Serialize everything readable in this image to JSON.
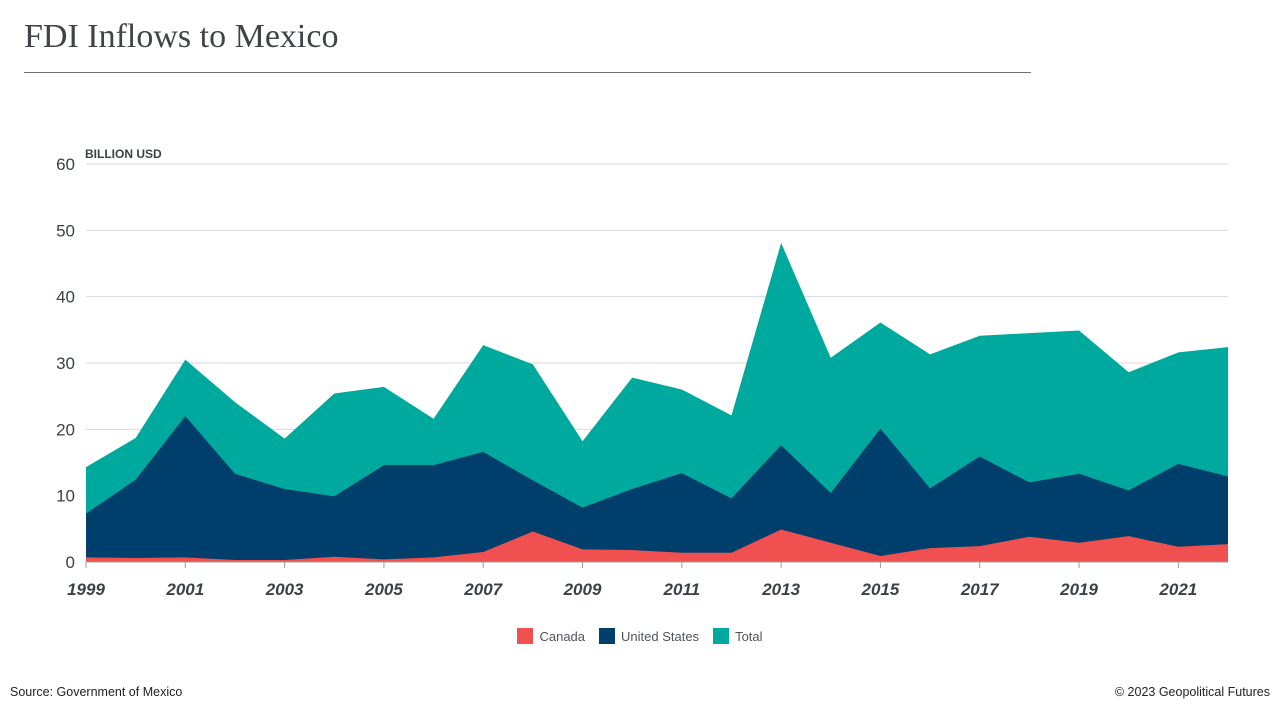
{
  "header": {
    "title": "FDI Inflows to Mexico"
  },
  "footer": {
    "source": "Source: Government of Mexico",
    "credit": "© 2023 Geopolitical Futures"
  },
  "chart_data": {
    "type": "area",
    "title": "FDI Inflows to Mexico",
    "unit_label": "BILLION USD",
    "x": [
      1999,
      2000,
      2001,
      2002,
      2003,
      2004,
      2005,
      2006,
      2007,
      2008,
      2009,
      2010,
      2011,
      2012,
      2013,
      2014,
      2015,
      2016,
      2017,
      2018,
      2019,
      2020,
      2021,
      2022
    ],
    "x_tick_labels": [
      "1999",
      "2001",
      "2003",
      "2005",
      "2007",
      "2009",
      "2011",
      "2013",
      "2015",
      "2017",
      "2019",
      "2021"
    ],
    "ylim": [
      0,
      60
    ],
    "y_ticks": [
      0,
      10,
      20,
      30,
      40,
      50,
      60
    ],
    "grid": true,
    "legend_position": "bottom",
    "series": [
      {
        "name": "Canada",
        "color": "#f05050",
        "values": [
          0.7,
          0.6,
          0.7,
          0.3,
          0.3,
          0.8,
          0.4,
          0.7,
          1.5,
          4.6,
          1.9,
          1.8,
          1.4,
          1.4,
          4.9,
          2.9,
          0.9,
          2.1,
          2.4,
          3.8,
          2.9,
          3.9,
          2.3,
          2.7
        ]
      },
      {
        "name": "United States",
        "color": "#003f6b",
        "values": [
          7.3,
          12.4,
          22.0,
          13.3,
          11.0,
          9.9,
          14.6,
          14.6,
          16.6,
          12.3,
          8.2,
          11.0,
          13.4,
          9.6,
          17.6,
          10.4,
          20.1,
          11.1,
          15.9,
          12.0,
          13.3,
          10.8,
          14.8,
          12.9
        ]
      },
      {
        "name": "Total",
        "color": "#00a99d",
        "values": [
          14.3,
          18.7,
          30.5,
          24.1,
          18.6,
          25.4,
          26.4,
          21.6,
          32.7,
          29.8,
          18.2,
          27.8,
          26.0,
          22.1,
          48.1,
          30.8,
          36.1,
          31.3,
          34.1,
          34.5,
          34.9,
          28.6,
          31.6,
          32.4
        ]
      }
    ]
  }
}
